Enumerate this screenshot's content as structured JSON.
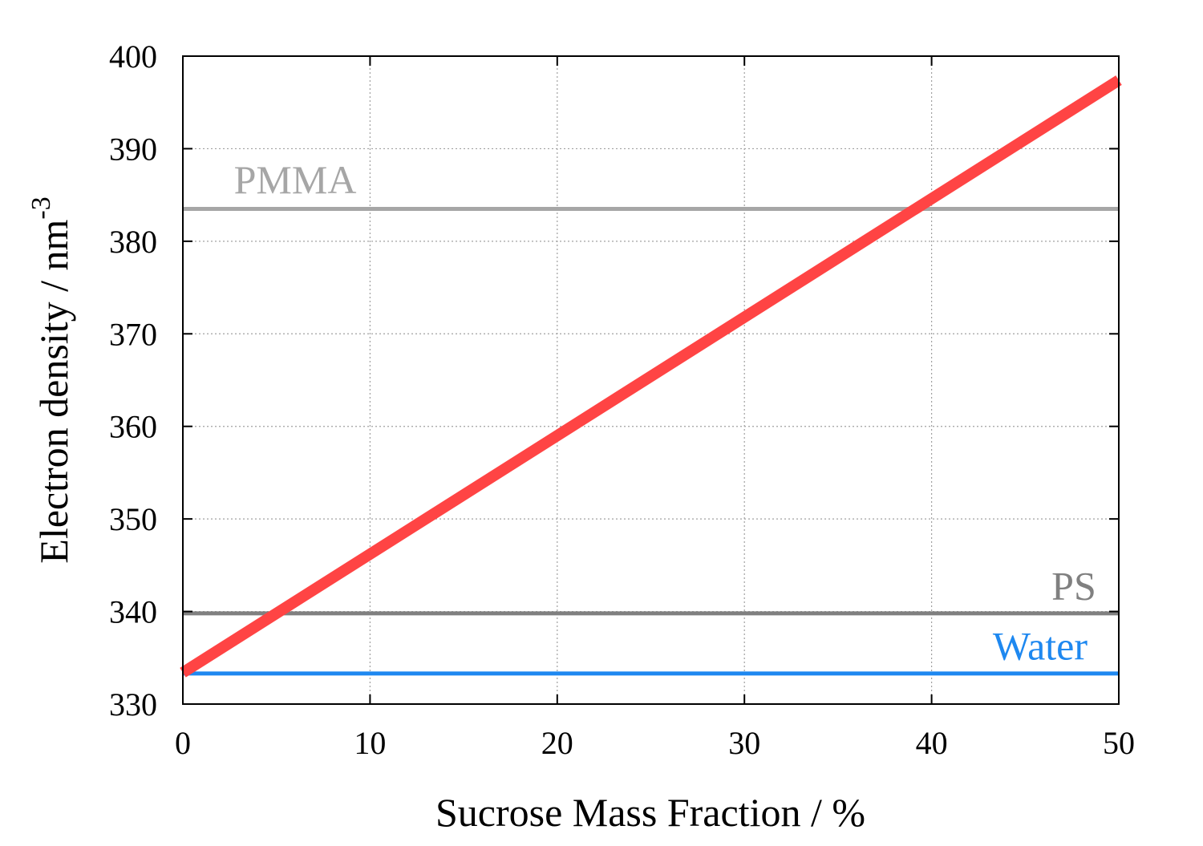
{
  "chart_data": {
    "type": "line",
    "title": "",
    "xlabel": "Sucrose Mass Fraction / %",
    "ylabel": "Electron density / nm",
    "ylabel_superscript": "-3",
    "xlim": [
      0,
      50
    ],
    "ylim": [
      330,
      400
    ],
    "xticks": [
      0,
      10,
      20,
      30,
      40,
      50
    ],
    "yticks": [
      330,
      340,
      350,
      360,
      370,
      380,
      390,
      400
    ],
    "grid": true,
    "series": [
      {
        "name": "PMMA",
        "color": "#a6a6a6",
        "x": [
          0,
          50
        ],
        "y": [
          383.5,
          383.5
        ],
        "label_x": 6,
        "label_y": 385.2
      },
      {
        "name": "PS",
        "color": "#808080",
        "x": [
          0,
          50
        ],
        "y": [
          339.8,
          339.8
        ],
        "label_x": 47.6,
        "label_y": 341.3
      },
      {
        "name": "Water",
        "color": "#1e88f0",
        "x": [
          0,
          50
        ],
        "y": [
          333.3,
          333.3
        ],
        "label_x": 45.8,
        "label_y": 334.8
      },
      {
        "name": "",
        "color": "#ff4444",
        "x": [
          0,
          50
        ],
        "y": [
          333.4,
          397.4
        ]
      }
    ]
  }
}
